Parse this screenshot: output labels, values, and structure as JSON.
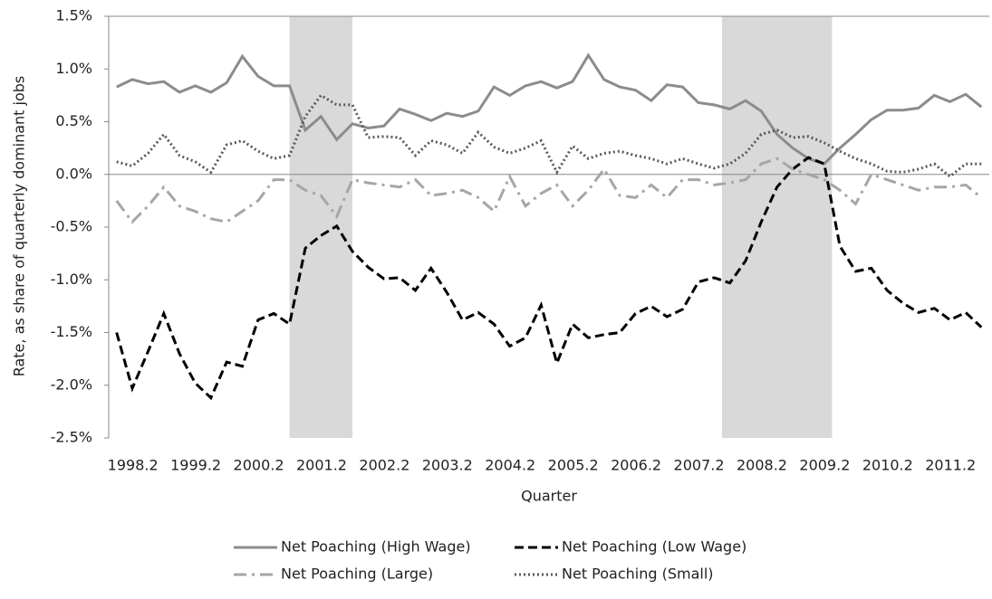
{
  "chart_data": {
    "type": "line",
    "y_label": "Rate, as share of quarterly dominant jobs",
    "x_label": "Quarter",
    "categories": [
      "1998.2",
      null,
      null,
      null,
      "1999.2",
      null,
      null,
      null,
      "2000.2",
      null,
      null,
      null,
      "2001.2",
      null,
      null,
      null,
      "2002.2",
      null,
      null,
      null,
      "2003.2",
      null,
      null,
      null,
      "2004.2",
      null,
      null,
      null,
      "2005.2",
      null,
      null,
      null,
      "2006.2",
      null,
      null,
      null,
      "2007.2",
      null,
      null,
      null,
      "2008.2",
      null,
      null,
      null,
      "2009.2",
      null,
      null,
      null,
      "2010.2",
      null,
      null,
      null,
      "2011.2",
      null,
      null,
      null
    ],
    "series": [
      {
        "name": "Net Poaching (High Wage)",
        "color": "#8c8c8c",
        "dash": "solid",
        "values": [
          0.83,
          0.9,
          0.86,
          0.88,
          0.78,
          0.84,
          0.78,
          0.87,
          1.12,
          0.93,
          0.84,
          0.84,
          0.42,
          0.55,
          0.33,
          0.48,
          0.44,
          0.46,
          0.62,
          0.57,
          0.51,
          0.58,
          0.55,
          0.6,
          0.83,
          0.75,
          0.84,
          0.88,
          0.82,
          0.88,
          1.13,
          0.9,
          0.83,
          0.8,
          0.7,
          0.85,
          0.83,
          0.68,
          0.66,
          0.62,
          0.7,
          0.6,
          0.38,
          0.25,
          0.15,
          0.1,
          0.25,
          0.38,
          0.52,
          0.61,
          0.61,
          0.63,
          0.75,
          0.69,
          0.76,
          0.64
        ]
      },
      {
        "name": "Net Poaching (Low Wage)",
        "color": "#000000",
        "dash": "dash",
        "values": [
          -1.5,
          -2.03,
          -1.68,
          -1.32,
          -1.7,
          -1.98,
          -2.12,
          -1.78,
          -1.82,
          -1.38,
          -1.32,
          -1.42,
          -0.7,
          -0.58,
          -0.49,
          -0.73,
          -0.88,
          -0.99,
          -0.98,
          -1.1,
          -0.89,
          -1.12,
          -1.38,
          -1.31,
          -1.42,
          -1.63,
          -1.55,
          -1.24,
          -1.79,
          -1.42,
          -1.55,
          -1.52,
          -1.5,
          -1.32,
          -1.25,
          -1.35,
          -1.28,
          -1.02,
          -0.98,
          -1.03,
          -0.82,
          -0.45,
          -0.12,
          0.05,
          0.16,
          0.1,
          -0.68,
          -0.92,
          -0.89,
          -1.1,
          -1.22,
          -1.31,
          -1.27,
          -1.38,
          -1.31,
          -1.45
        ]
      },
      {
        "name": "Net Poaching (Large)",
        "color": "#a6a6a6",
        "dash": "dashdot",
        "values": [
          -0.25,
          -0.45,
          -0.3,
          -0.12,
          -0.3,
          -0.35,
          -0.42,
          -0.45,
          -0.35,
          -0.25,
          -0.05,
          -0.05,
          -0.15,
          -0.2,
          -0.4,
          -0.05,
          -0.08,
          -0.1,
          -0.12,
          -0.05,
          -0.2,
          -0.18,
          -0.15,
          -0.22,
          -0.35,
          -0.02,
          -0.3,
          -0.18,
          -0.1,
          -0.3,
          -0.15,
          0.05,
          -0.2,
          -0.22,
          -0.1,
          -0.22,
          -0.05,
          -0.05,
          -0.1,
          -0.08,
          -0.05,
          0.1,
          0.15,
          0.05,
          0.0,
          -0.05,
          -0.15,
          -0.28,
          0.0,
          -0.05,
          -0.1,
          -0.15,
          -0.12,
          -0.12,
          -0.1,
          -0.22
        ]
      },
      {
        "name": "Net Poaching (Small)",
        "color": "#595959",
        "dash": "dot",
        "values": [
          0.12,
          0.08,
          0.2,
          0.38,
          0.18,
          0.12,
          0.02,
          0.28,
          0.32,
          0.22,
          0.15,
          0.18,
          0.55,
          0.75,
          0.66,
          0.66,
          0.35,
          0.36,
          0.35,
          0.18,
          0.32,
          0.28,
          0.2,
          0.4,
          0.26,
          0.2,
          0.25,
          0.32,
          0.02,
          0.27,
          0.15,
          0.2,
          0.22,
          0.18,
          0.15,
          0.1,
          0.15,
          0.1,
          0.06,
          0.1,
          0.2,
          0.38,
          0.42,
          0.35,
          0.36,
          0.3,
          0.22,
          0.15,
          0.1,
          0.03,
          0.02,
          0.05,
          0.1,
          -0.02,
          0.1,
          0.1
        ]
      }
    ],
    "shaded_bands": [
      [
        11.5,
        15.5
      ],
      [
        39,
        46
      ]
    ],
    "shade_color": "#d9d9d9",
    "ylim": [
      -2.5,
      1.5
    ],
    "yticks": [
      {
        "value": -2.5,
        "label": "-2.5%"
      },
      {
        "value": -2.0,
        "label": "-2.0%"
      },
      {
        "value": -1.5,
        "label": "-1.5%"
      },
      {
        "value": -1.0,
        "label": "-1.0%"
      },
      {
        "value": -0.5,
        "label": "-0.5%"
      },
      {
        "value": 0,
        "label": "0.0%"
      },
      {
        "value": 0.5,
        "label": "0.5%"
      },
      {
        "value": 1.0,
        "label": "1.0%"
      },
      {
        "value": 1.5,
        "label": "1.5%"
      }
    ],
    "legend": "bottom"
  }
}
